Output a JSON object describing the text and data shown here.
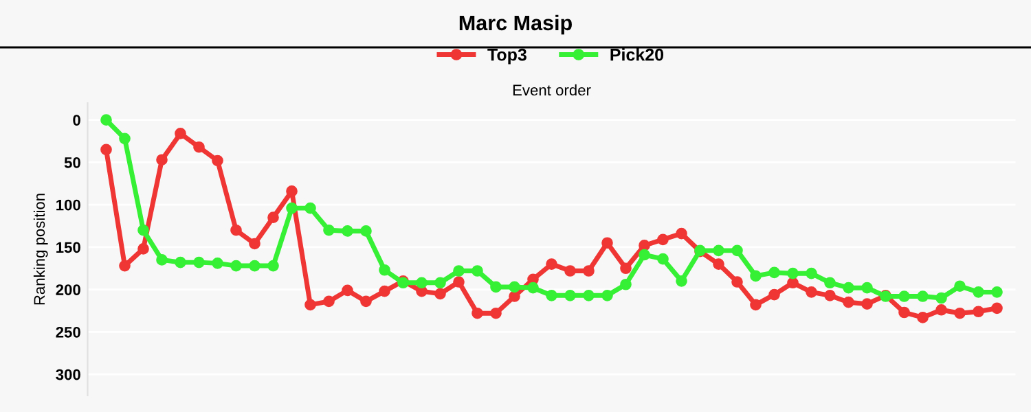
{
  "chart_data": {
    "type": "line",
    "title": "Marc Masip",
    "xlabel": "Event order",
    "ylabel": "Ranking position",
    "categories": [
      null,
      null,
      null,
      null,
      null,
      null,
      null,
      null,
      null,
      null,
      null,
      null,
      null,
      null,
      null,
      null,
      null,
      null,
      null,
      null,
      null,
      null,
      null,
      null,
      null,
      null,
      null,
      null,
      null,
      null,
      null,
      null,
      null,
      null,
      null,
      null,
      null,
      null,
      null,
      null,
      null,
      null,
      null,
      null,
      null,
      null,
      null,
      null,
      null
    ],
    "series": [
      {
        "name": "Top3",
        "color": "#f03535",
        "values": [
          35,
          172,
          152,
          47,
          16,
          32,
          48,
          130,
          146,
          115,
          84,
          218,
          214,
          201,
          214,
          202,
          190,
          202,
          205,
          191,
          228,
          228,
          208,
          188,
          170,
          178,
          178,
          145,
          175,
          148,
          141,
          134,
          155,
          170,
          191,
          218,
          206,
          192,
          203,
          207,
          215,
          217,
          207,
          227,
          233,
          224,
          228,
          226,
          222
        ]
      },
      {
        "name": "Pick20",
        "color": "#35f035",
        "values": [
          0,
          22,
          130,
          165,
          168,
          168,
          169,
          172,
          172,
          172,
          104,
          104,
          130,
          131,
          131,
          177,
          192,
          192,
          192,
          178,
          178,
          197,
          197,
          198,
          207,
          207,
          207,
          207,
          194,
          159,
          164,
          190,
          154,
          154,
          154,
          184,
          180,
          181,
          181,
          192,
          198,
          198,
          208,
          208,
          208,
          210,
          196,
          203,
          203
        ]
      }
    ],
    "ylim": [
      325,
      -20
    ],
    "yticks": [
      0,
      50,
      100,
      150,
      200,
      250,
      300
    ],
    "grid": "y",
    "legend": "top",
    "marker": "circle",
    "line_style": "solid"
  }
}
